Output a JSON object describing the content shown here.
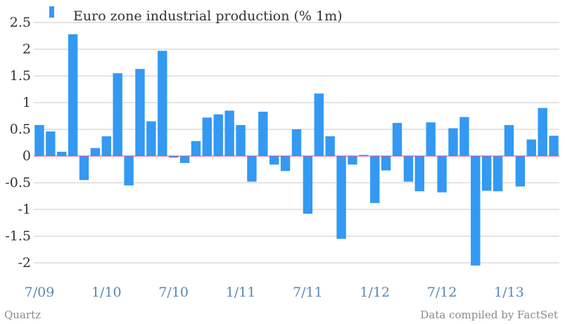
{
  "chart_data": {
    "type": "bar",
    "title": "",
    "xlabel": "",
    "ylabel": "",
    "ylim": [
      -2.0,
      2.5
    ],
    "yticks": [
      2.5,
      2,
      1.5,
      1,
      0.5,
      0,
      -0.5,
      -1,
      -1.5,
      -2
    ],
    "ytick_labels": [
      "2.5",
      "2",
      "1.5",
      "1",
      "0.5",
      "0",
      "-0.5",
      "-1",
      "-1.5",
      "-2"
    ],
    "grid": true,
    "legend_position": "top-left",
    "x_tick_labels": [
      {
        "label": "7/09",
        "index": 0
      },
      {
        "label": "1/10",
        "index": 6
      },
      {
        "label": "7/10",
        "index": 12
      },
      {
        "label": "1/11",
        "index": 18
      },
      {
        "label": "7/11",
        "index": 24
      },
      {
        "label": "1/12",
        "index": 30
      },
      {
        "label": "7/12",
        "index": 36
      },
      {
        "label": "1/13",
        "index": 42
      }
    ],
    "series": [
      {
        "name": "Euro zone industrial production (% 1m)",
        "color": "#3399f2",
        "values": [
          0.58,
          0.46,
          0.08,
          2.28,
          -0.45,
          0.15,
          0.37,
          1.55,
          -0.55,
          1.63,
          0.65,
          1.97,
          -0.03,
          -0.13,
          0.28,
          0.72,
          0.78,
          0.85,
          0.58,
          -0.48,
          0.83,
          -0.16,
          -0.28,
          0.5,
          -1.08,
          1.17,
          0.37,
          -1.55,
          -0.16,
          0.02,
          -0.88,
          -0.27,
          0.62,
          -0.48,
          -0.66,
          0.63,
          -0.68,
          0.52,
          0.73,
          -2.05,
          -0.65,
          -0.66,
          0.58,
          -0.57,
          0.31,
          0.9,
          0.38
        ]
      }
    ],
    "zero_line_color": "#d63fa0"
  },
  "source_left": "Quartz",
  "source_right": "Data compiled by FactSet"
}
